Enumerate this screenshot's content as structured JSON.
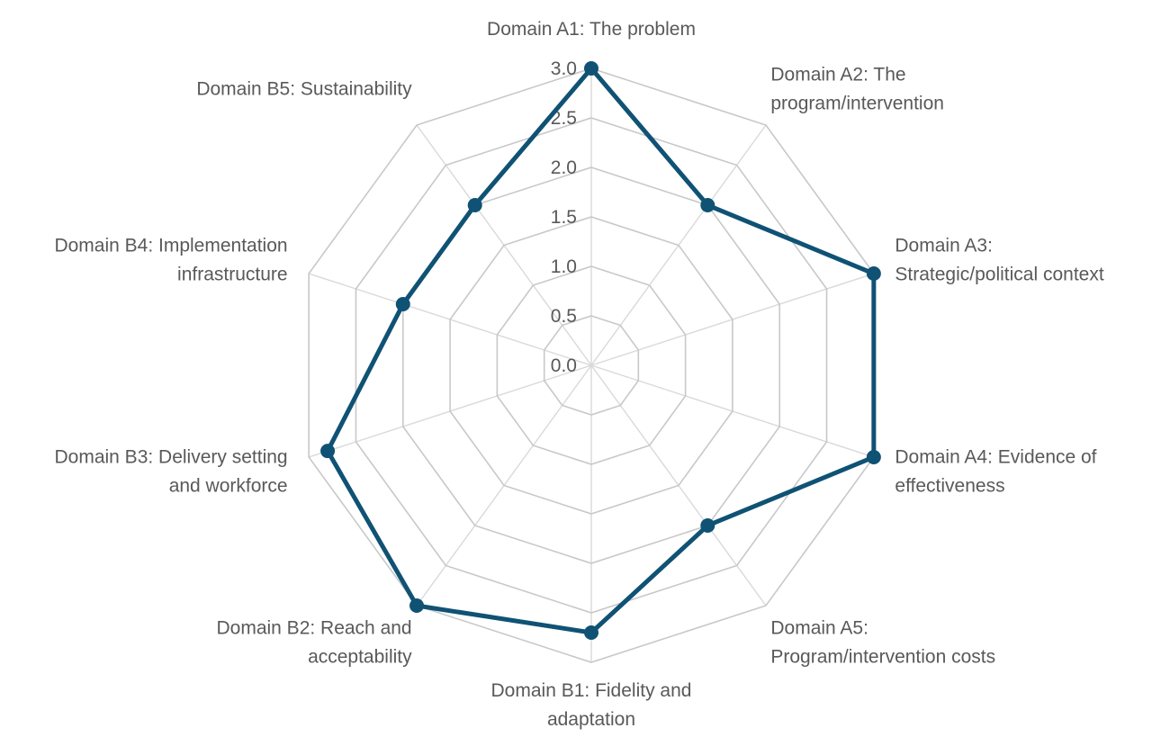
{
  "chart_data": {
    "type": "radar",
    "title": "",
    "categories": [
      [
        "Domain A1: The problem"
      ],
      [
        "Domain A2: The",
        "program/intervention"
      ],
      [
        "Domain A3:",
        "Strategic/political context"
      ],
      [
        "Domain A4: Evidence of",
        "effectiveness"
      ],
      [
        "Domain A5:",
        "Program/intervention costs"
      ],
      [
        "Domain B1: Fidelity and",
        "adaptation"
      ],
      [
        "Domain B2: Reach and",
        "acceptability"
      ],
      [
        "Domain B3: Delivery setting",
        "and workforce"
      ],
      [
        "Domain B4: Implementation",
        "infrastructure"
      ],
      [
        "Domain B5: Sustainability"
      ]
    ],
    "series": [
      {
        "values": [
          3.0,
          2.0,
          3.0,
          3.0,
          2.0,
          2.7,
          3.0,
          2.8,
          2.0,
          2.0
        ]
      }
    ],
    "r_ticks": [
      "0.0",
      "0.5",
      "1.0",
      "1.5",
      "2.0",
      "2.5",
      "3.0"
    ],
    "r_range": [
      0,
      3
    ],
    "grid": true,
    "legend": "none",
    "colors": {
      "series": "#0f5274",
      "grid": "#c8c8c8",
      "spoke": "#d9d9d9",
      "text": "#595959"
    }
  }
}
